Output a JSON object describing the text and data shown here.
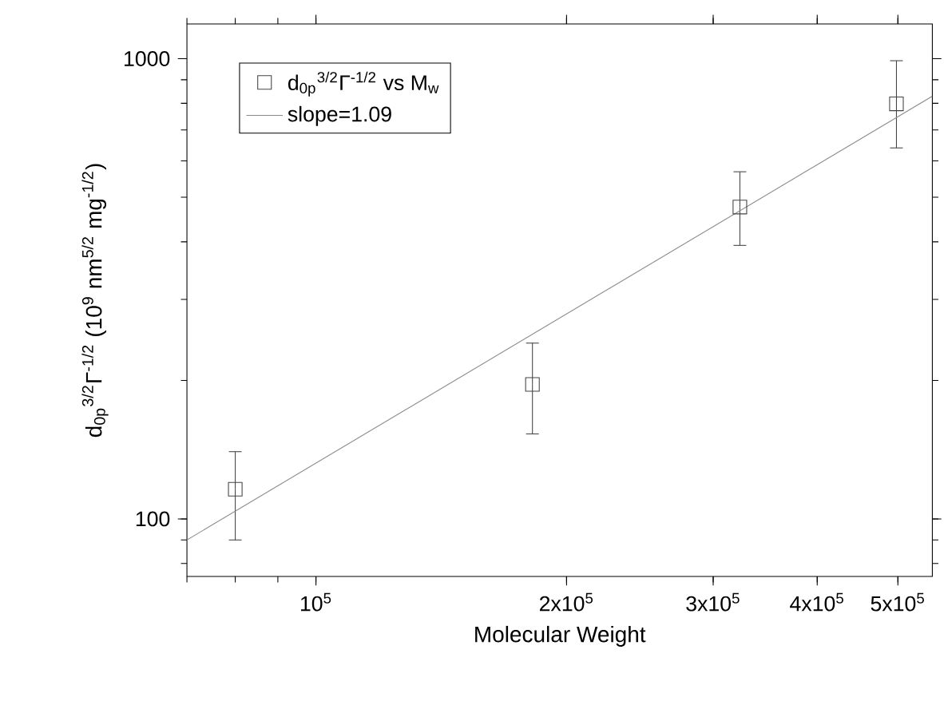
{
  "chart_data": {
    "type": "scatter",
    "xlabel": "Molecular Weight",
    "ylabel": "d$_{0p}$$^{3/2}$Γ$^{-1/2}$ (10$^{9}$ nm$^{5/2}$ mg$^{-1/2}$)",
    "log": "xy",
    "xlim": [
      70000,
      550000
    ],
    "ylim": [
      75,
      1190
    ],
    "xticks": [
      {
        "value": 100000,
        "label": "10$^{5}$"
      },
      {
        "value": 200000,
        "label": "2x10$^{5}$"
      },
      {
        "value": 300000,
        "label": "3x10$^{5}$"
      },
      {
        "value": 400000,
        "label": "4x10$^{5}$"
      },
      {
        "value": 500000,
        "label": "5x10$^{5}$"
      }
    ],
    "yticks": [
      100,
      1000
    ],
    "grid": false,
    "legend": "top left",
    "series": [
      {
        "name": "d$_{0p}$$^{3/2}$Γ$^{-1/2}$ vs M$_{w}$",
        "color": "#444444",
        "marker": "square",
        "x": [
          80000,
          182000,
          323000,
          498000
        ],
        "values": [
          116,
          196,
          476,
          798
        ],
        "errors": [
          [
            90,
            140
          ],
          [
            153,
            241
          ],
          [
            393,
            568
          ],
          [
            640,
            990
          ]
        ]
      },
      {
        "name": "slope=1.09",
        "type": "line",
        "color": "#888888",
        "marker": "none",
        "line_style": "solid",
        "x": [
          70000,
          550000
        ],
        "values": [
          90,
          829
        ]
      }
    ]
  }
}
